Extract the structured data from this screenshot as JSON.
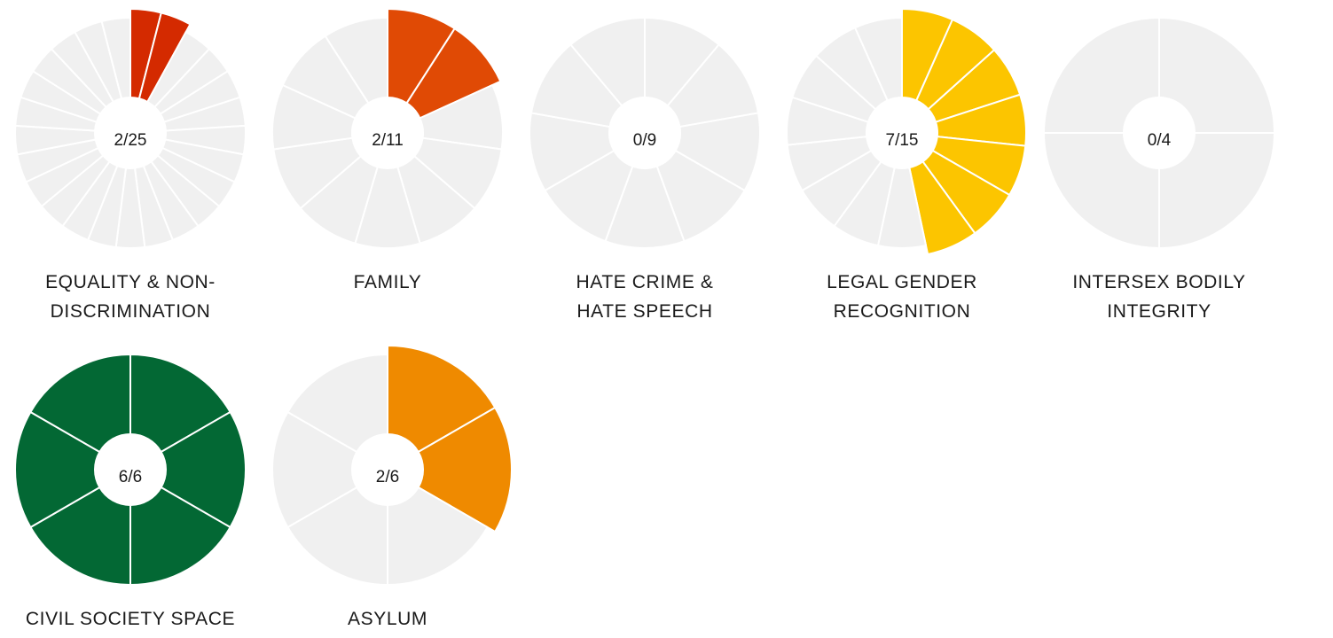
{
  "chart_data": [
    {
      "type": "pie",
      "label": "EQUALITY & NON-DISCRIMINATION",
      "ratio_text": "2/25",
      "achieved": 2,
      "total": 25,
      "color": "#d42a00",
      "empty_color": "#f0f0f0"
    },
    {
      "type": "pie",
      "label": "FAMILY",
      "ratio_text": "2/11",
      "achieved": 2,
      "total": 11,
      "color": "#e04a05",
      "empty_color": "#f0f0f0"
    },
    {
      "type": "pie",
      "label": "HATE CRIME & HATE SPEECH",
      "ratio_text": "0/9",
      "achieved": 0,
      "total": 9,
      "color": "#e04a05",
      "empty_color": "#f0f0f0"
    },
    {
      "type": "pie",
      "label": "LEGAL GENDER RECOGNITION",
      "ratio_text": "7/15",
      "achieved": 7,
      "total": 15,
      "color": "#fcc500",
      "empty_color": "#f0f0f0"
    },
    {
      "type": "pie",
      "label": "INTERSEX BODILY INTEGRITY",
      "ratio_text": "0/4",
      "achieved": 0,
      "total": 4,
      "color": "#e04a05",
      "empty_color": "#f0f0f0"
    },
    {
      "type": "pie",
      "label": "CIVIL SOCIETY SPACE",
      "ratio_text": "6/6",
      "achieved": 6,
      "total": 6,
      "color": "#036834",
      "empty_color": "#f0f0f0"
    },
    {
      "type": "pie",
      "label": "ASYLUM",
      "ratio_text": "2/6",
      "achieved": 2,
      "total": 6,
      "color": "#ef8a00",
      "empty_color": "#f0f0f0"
    }
  ]
}
